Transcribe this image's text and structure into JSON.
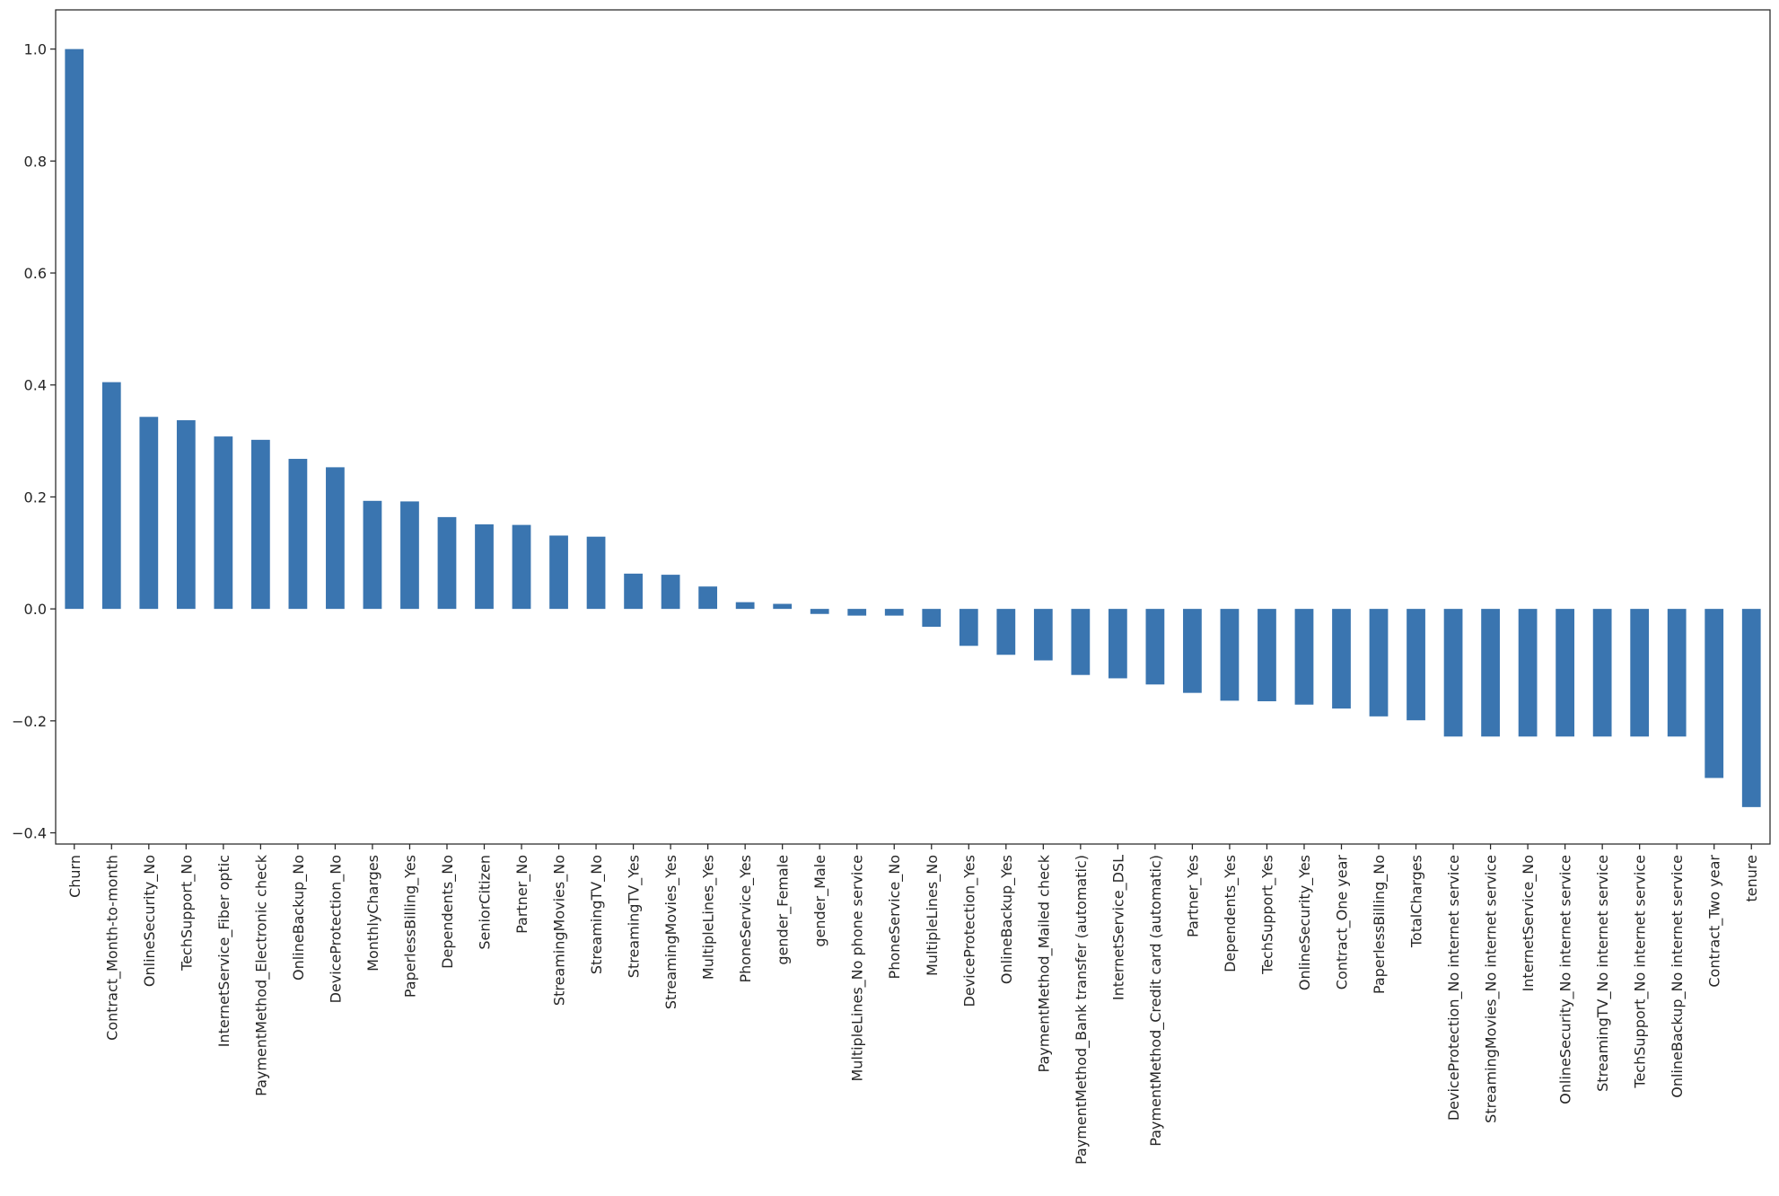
{
  "chart_data": {
    "type": "bar",
    "color": "#3a75b0",
    "ylim": [
      -0.42,
      1.07
    ],
    "yticks": [
      -0.4,
      -0.2,
      0.0,
      0.2,
      0.4,
      0.6,
      0.8,
      1.0
    ],
    "ytick_labels": [
      "−0.4",
      "−0.2",
      "0.0",
      "0.2",
      "0.4",
      "0.6",
      "0.8",
      "1.0"
    ],
    "categories": [
      "Churn",
      "Contract_Month-to-month",
      "OnlineSecurity_No",
      "TechSupport_No",
      "InternetService_Fiber optic",
      "PaymentMethod_Electronic check",
      "OnlineBackup_No",
      "DeviceProtection_No",
      "MonthlyCharges",
      "PaperlessBilling_Yes",
      "Dependents_No",
      "SeniorCitizen",
      "Partner_No",
      "StreamingMovies_No",
      "StreamingTV_No",
      "StreamingTV_Yes",
      "StreamingMovies_Yes",
      "MultipleLines_Yes",
      "PhoneService_Yes",
      "gender_Female",
      "gender_Male",
      "MultipleLines_No phone service",
      "PhoneService_No",
      "MultipleLines_No",
      "DeviceProtection_Yes",
      "OnlineBackup_Yes",
      "PaymentMethod_Mailed check",
      "PaymentMethod_Bank transfer (automatic)",
      "InternetService_DSL",
      "PaymentMethod_Credit card (automatic)",
      "Partner_Yes",
      "Dependents_Yes",
      "TechSupport_Yes",
      "OnlineSecurity_Yes",
      "Contract_One year",
      "PaperlessBilling_No",
      "TotalCharges",
      "DeviceProtection_No internet service",
      "StreamingMovies_No internet service",
      "InternetService_No",
      "OnlineSecurity_No internet service",
      "StreamingTV_No internet service",
      "TechSupport_No internet service",
      "OnlineBackup_No internet service",
      "Contract_Two year",
      "tenure"
    ],
    "values": [
      1.0,
      0.405,
      0.343,
      0.337,
      0.308,
      0.302,
      0.268,
      0.253,
      0.193,
      0.192,
      0.164,
      0.151,
      0.15,
      0.131,
      0.129,
      0.063,
      0.061,
      0.04,
      0.012,
      0.009,
      -0.009,
      -0.012,
      -0.012,
      -0.032,
      -0.066,
      -0.082,
      -0.092,
      -0.118,
      -0.124,
      -0.135,
      -0.15,
      -0.164,
      -0.165,
      -0.171,
      -0.178,
      -0.192,
      -0.199,
      -0.228,
      -0.228,
      -0.228,
      -0.228,
      -0.228,
      -0.228,
      -0.228,
      -0.302,
      -0.354
    ]
  }
}
